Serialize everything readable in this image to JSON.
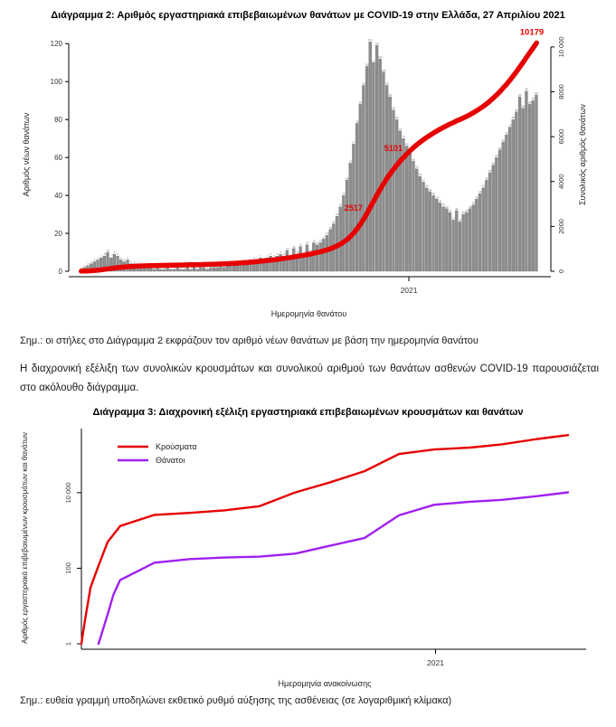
{
  "colors": {
    "cases_red": "#e60000",
    "deaths_purple": "#a020f0",
    "bar_gray": "#8d8d8d",
    "bar_edge": "#6e6e6e",
    "annotation_red": "#e60000",
    "axis_black": "#000000",
    "tick_text": "#333333"
  },
  "titles": {
    "diagram2": "Διάγραμμα 2: Αριθμός εργαστηριακά επιβεβαιωμένων θανάτων με COVID-19 στην Ελλάδα, 27 Απριλίου 2021",
    "diagram3": "Διάγραμμα 3: Διαχρονική εξέλιξη εργαστηριακά επιβεβαιωμένων κρουσμάτων και θανάτων"
  },
  "notes": {
    "note1": "Σημ.: οι στήλες στο Διάγραμμα 2 εκφράζουν τον αριθμό νέων θανάτων με βάση την ημερομηνία θανάτου",
    "paragraph": "Η διαχρονική εξέλιξη των συνολικών κρουσμάτων και συνολικού αριθμού των θανάτων ασθενών COVID-19 παρουσιάζεται στο ακόλουθο διάγραμμα.",
    "note2": "Σημ.: ευθεία γραμμή υποδηλώνει εκθετικό ρυθμό αύξησης της ασθένειας (σε λογαριθμική κλίμακα)"
  },
  "chart_data": [
    {
      "type": "bar",
      "title": "Αριθμός εργαστηριακά επιβεβαιωμένων θανάτων με COVID-19 στην Ελλάδα, 27 Απριλίου 2021",
      "xlabel": "Ημερομηνία θανάτου",
      "x_tick_label": "2021",
      "x_tick_fraction": 0.718,
      "y_left": {
        "label": "Αριθμός νέων θανάτων",
        "ticks": [
          0,
          20,
          40,
          60,
          80,
          100,
          120
        ],
        "max": 123
      },
      "y_right": {
        "label": "Συνολικός αριθμός θανάτων",
        "ticks": [
          0,
          2000,
          4000,
          6000,
          8000,
          10000
        ],
        "tick_labels": [
          "0",
          "2000",
          "4000",
          "6000",
          "8000",
          "10 000"
        ],
        "max": 10400
      },
      "sample_interval_days": 3,
      "new_deaths": [
        1,
        2,
        3,
        4,
        5,
        6,
        7,
        8,
        10,
        7,
        9,
        8,
        6,
        5,
        6,
        4,
        4,
        3,
        3,
        2,
        2,
        2,
        1,
        2,
        1,
        1,
        2,
        1,
        1,
        2,
        1,
        1,
        2,
        1,
        2,
        1,
        2,
        2,
        1,
        2,
        2,
        2,
        3,
        2,
        3,
        3,
        4,
        3,
        4,
        5,
        4,
        5,
        6,
        5,
        7,
        6,
        7,
        8,
        7,
        8,
        9,
        8,
        11,
        7,
        12,
        9,
        13,
        8,
        14,
        10,
        15,
        14,
        15,
        17,
        19,
        22,
        25,
        29,
        34,
        40,
        48,
        57,
        67,
        78,
        88,
        98,
        108,
        121,
        110,
        119,
        112,
        105,
        98,
        92,
        85,
        80,
        74,
        70,
        66,
        62,
        58,
        54,
        50,
        47,
        44,
        42,
        40,
        38,
        36,
        34,
        33,
        31,
        27,
        32,
        26,
        30,
        31,
        33,
        35,
        38,
        41,
        44,
        48,
        52,
        56,
        60,
        64,
        68,
        72,
        76,
        80,
        84,
        92,
        86,
        95,
        88,
        90,
        93
      ],
      "cumulative_final_total": 10179,
      "annotations": [
        {
          "text": "2517",
          "value": 2517
        },
        {
          "text": "5101",
          "value": 5101
        },
        {
          "text": "10179",
          "value": 10179,
          "at": "end"
        }
      ],
      "grid": false,
      "legend": null
    },
    {
      "type": "line",
      "log_scale": true,
      "title": "Διαχρονική εξέλιξη εργαστηριακά επιβεβαιωμένων κρουσμάτων και θανάτων",
      "xlabel": "Ημερομηνία ανακοίνωσης",
      "ylabel": "Αριθμός εργαστηριακά επιβεβαιωμένων κρουσμάτων και θανάτων",
      "x_tick_label": "2021",
      "x_tick_day": 310,
      "x_total_days": 426,
      "y_ticks": [
        {
          "label": "1",
          "value": 1
        },
        {
          "label": "100",
          "value": 100
        },
        {
          "label": "10 000",
          "value": 10000
        }
      ],
      "y_log_max_exponent": 5.6,
      "legend_position": "top-left",
      "series": [
        {
          "name": "Κρούσματα",
          "color_key": "cases_red",
          "points": [
            [
              0,
              1
            ],
            [
              3,
              4
            ],
            [
              8,
              31
            ],
            [
              15,
              117
            ],
            [
              23,
              495
            ],
            [
              34,
              1314
            ],
            [
              64,
              2591
            ],
            [
              95,
              2917
            ],
            [
              125,
              3409
            ],
            [
              156,
              4401
            ],
            [
              187,
              10134
            ],
            [
              217,
              18475
            ],
            [
              248,
              37196
            ],
            [
              278,
              105271
            ],
            [
              309,
              138850
            ],
            [
              340,
              155678
            ],
            [
              368,
              190235
            ],
            [
              399,
              262812
            ],
            [
              426,
              334436
            ]
          ]
        },
        {
          "name": "Θάνατοι",
          "color_key": "deaths_purple",
          "points": [
            [
              15,
              1
            ],
            [
              23,
              6
            ],
            [
              28,
              20
            ],
            [
              34,
              49
            ],
            [
              64,
              140
            ],
            [
              95,
              175
            ],
            [
              125,
              192
            ],
            [
              156,
              203
            ],
            [
              187,
              243
            ],
            [
              217,
              391
            ],
            [
              248,
              635
            ],
            [
              278,
              2517
            ],
            [
              309,
              4788
            ],
            [
              340,
              5764
            ],
            [
              368,
              6468
            ],
            [
              399,
              8093
            ],
            [
              426,
              10179
            ]
          ]
        }
      ]
    }
  ]
}
